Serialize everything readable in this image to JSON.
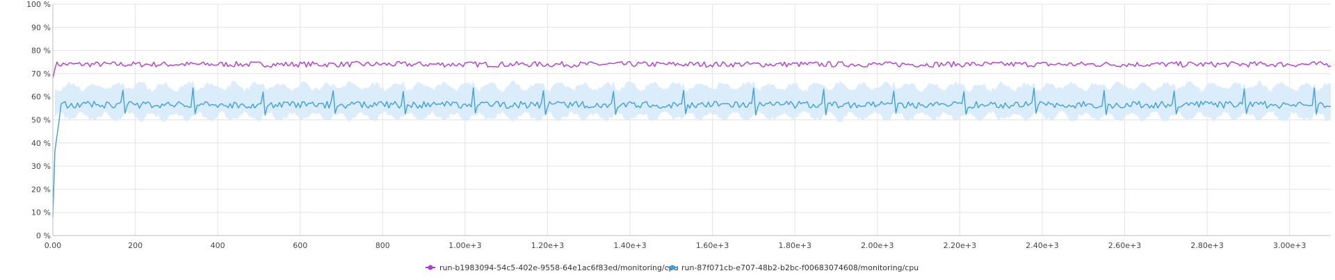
{
  "chart_data": {
    "type": "line",
    "x_ticks": [
      "0.00",
      "200",
      "400",
      "600",
      "800",
      "1.00e+3",
      "1.20e+3",
      "1.40e+3",
      "1.60e+3",
      "1.80e+3",
      "2.00e+3",
      "2.20e+3",
      "2.40e+3",
      "2.60e+3",
      "2.80e+3",
      "3.00e+3"
    ],
    "y_ticks": [
      "0 %",
      "10 %",
      "20 %",
      "30 %",
      "40 %",
      "50 %",
      "60 %",
      "70 %",
      "80 %",
      "90 %",
      "100 %"
    ],
    "xlim": [
      0,
      3100
    ],
    "ylim": [
      0,
      100
    ],
    "grid": true,
    "legend_position": "bottom-center",
    "series": [
      {
        "name": "run-b1983094-54c5-402e-9558-64e1ac6f83ed/monitoring/cpu",
        "color": "#b336d8",
        "mean": 74,
        "start_value": 68,
        "noise": 1.2,
        "band": false
      },
      {
        "name": "run-87f071cb-e707-48b2-b2bc-f00683074608/monitoring/cpu",
        "color": "#3a9ee8",
        "band_color": "#d7ebfb",
        "mean": 56.5,
        "start_value": 8,
        "noise": 1.5,
        "spike_period": 34,
        "spike_value": 62,
        "dip_value": 52,
        "band_low": 49,
        "band_high": 65,
        "band": true
      }
    ]
  }
}
